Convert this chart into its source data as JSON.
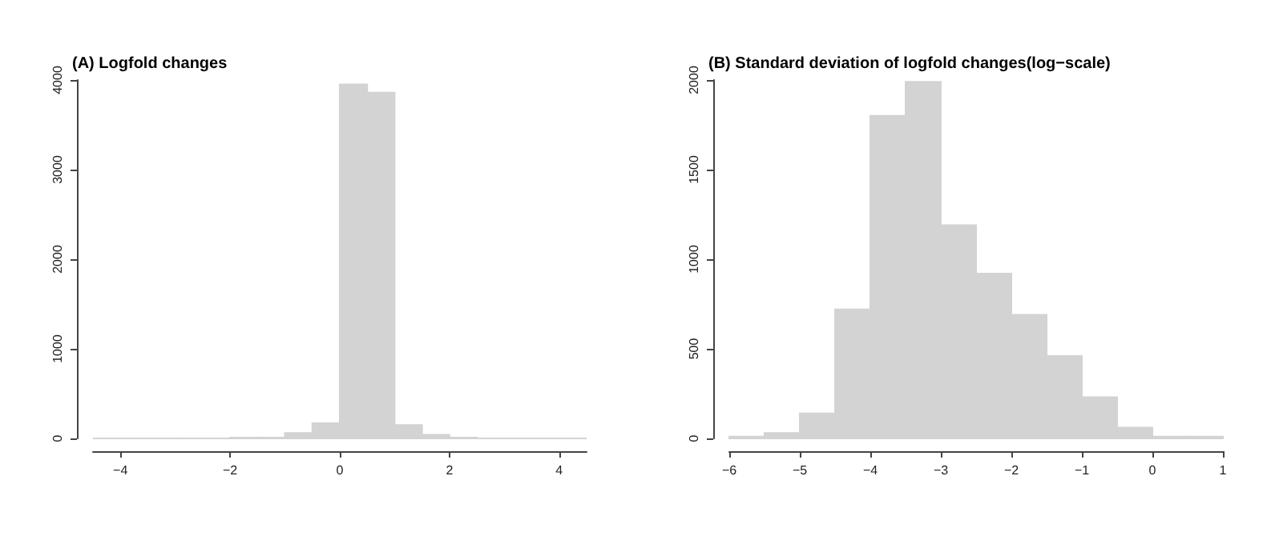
{
  "chart_data": [
    {
      "type": "histogram",
      "title": "(A) Logfold changes",
      "color": "#d3d3d3",
      "bins": [
        -4.5,
        -4,
        -3.5,
        -3,
        -2.5,
        -2,
        -1.5,
        -1,
        -0.5,
        0,
        0.5,
        1,
        1.5,
        2,
        2.5,
        3,
        3.5,
        4,
        4.5
      ],
      "values": [
        0,
        0,
        0,
        0,
        0,
        10,
        10,
        60,
        170,
        3950,
        3860,
        150,
        40,
        10,
        0,
        0,
        0,
        0
      ],
      "xlim": [
        -4.5,
        4.5
      ],
      "xticks": [
        {
          "value": -4,
          "label": "−4"
        },
        {
          "value": -2,
          "label": "−2"
        },
        0,
        2,
        4
      ],
      "ylim": [
        0,
        4000
      ],
      "yticks": [
        0,
        1000,
        2000,
        3000,
        4000
      ],
      "grid": false
    },
    {
      "type": "histogram",
      "title": "(B) Standard deviation of logfold changes(log−scale)",
      "color": "#d3d3d3",
      "bins": [
        -6,
        -5.5,
        -5,
        -4.5,
        -4,
        -3.5,
        -3,
        -2.5,
        -2,
        -1.5,
        -1,
        -0.5,
        0,
        0.5,
        1
      ],
      "values": [
        10,
        30,
        140,
        720,
        1800,
        1990,
        1190,
        920,
        690,
        460,
        230,
        60,
        10,
        10
      ],
      "xlim": [
        -6,
        1
      ],
      "xticks": [
        {
          "value": -6,
          "label": "−6"
        },
        {
          "value": -5,
          "label": "−5"
        },
        {
          "value": -4,
          "label": "−4"
        },
        {
          "value": -3,
          "label": "−3"
        },
        {
          "value": -2,
          "label": "−2"
        },
        {
          "value": -1,
          "label": "−1"
        },
        0,
        1
      ],
      "ylim": [
        0,
        2000
      ],
      "yticks": [
        0,
        500,
        1000,
        1500,
        2000
      ],
      "grid": false
    }
  ]
}
